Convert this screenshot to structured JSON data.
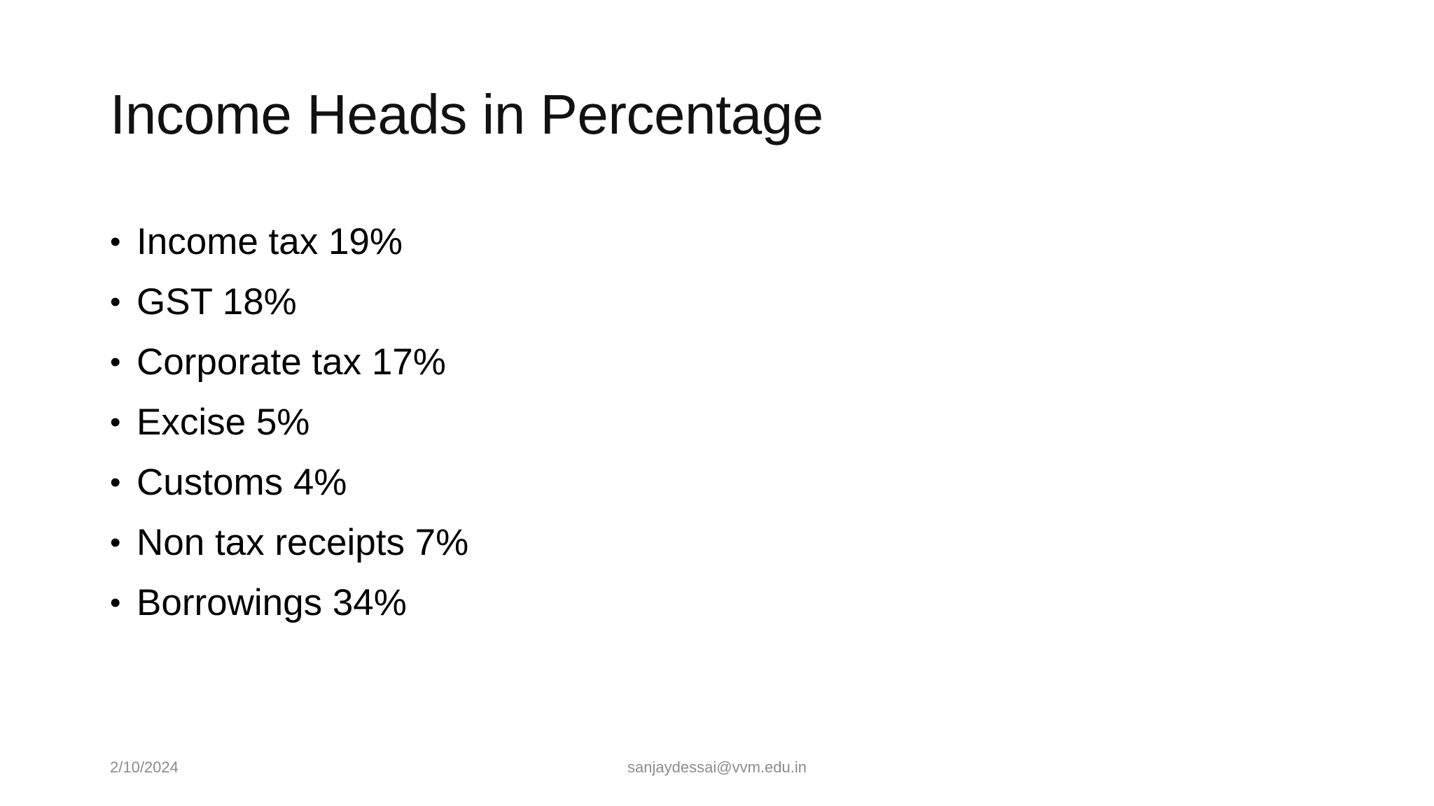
{
  "header": {
    "title": "Income Heads in Percentage"
  },
  "bullets": [
    "Income tax 19%",
    "GST 18%",
    "Corporate tax 17%",
    "Excise 5%",
    "Customs 4%",
    "Non tax receipts 7%",
    "Borrowings 34%"
  ],
  "footer": {
    "date": "2/10/2024",
    "email": "sanjaydessai@vvm.edu.in"
  }
}
